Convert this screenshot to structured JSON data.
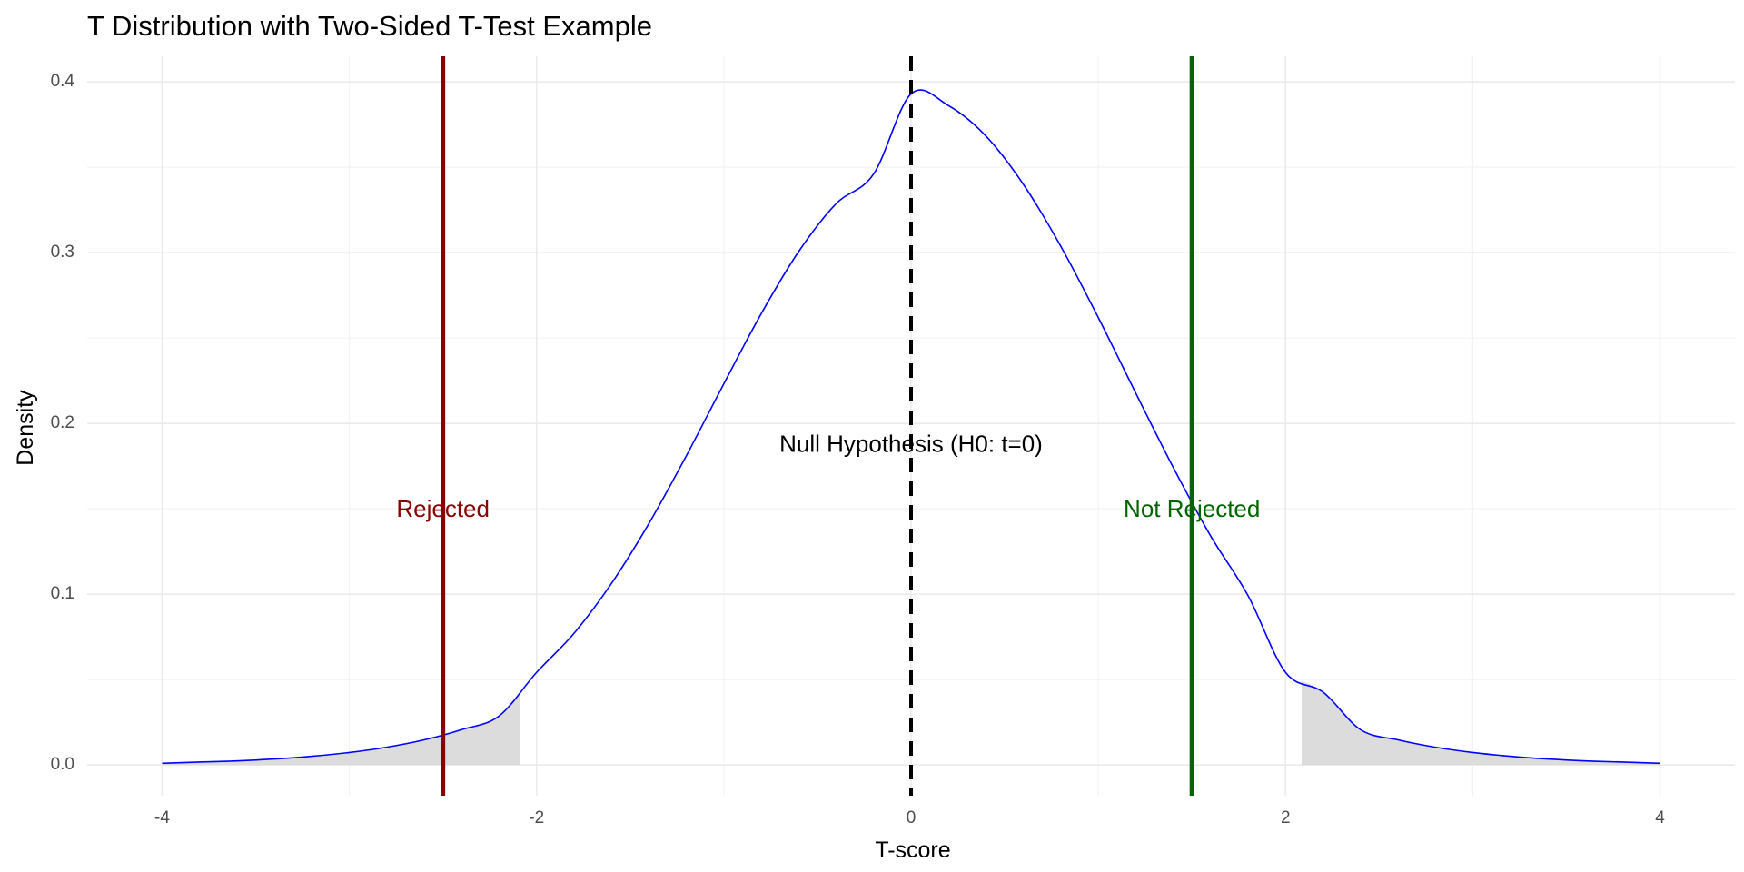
{
  "chart_data": {
    "type": "line",
    "title": "T Distribution with Two-Sided T-Test Example",
    "xlabel": "T-score",
    "ylabel": "Density",
    "xlim": [
      -4.4,
      4.4
    ],
    "ylim": [
      -0.018,
      0.415
    ],
    "x_ticks": [
      -4,
      -2,
      0,
      2,
      4
    ],
    "x_tick_labels": [
      "-4",
      "-2",
      "0",
      "2",
      "4"
    ],
    "y_ticks": [
      0.0,
      0.1,
      0.2,
      0.3,
      0.4
    ],
    "y_tick_labels": [
      "0.0",
      "0.1",
      "0.2",
      "0.3",
      "0.4"
    ],
    "grid": true,
    "series": [
      {
        "color": "#0000ff",
        "x": [
          -4.0,
          -3.8,
          -3.6,
          -3.4,
          -3.2,
          -3.0,
          -2.8,
          -2.6,
          -2.4,
          -2.2,
          -2.0,
          -1.8,
          -1.6,
          -1.4,
          -1.2,
          -1.0,
          -0.8,
          -0.6,
          -0.4,
          -0.2,
          0.0,
          0.2,
          0.4,
          0.6,
          0.8,
          1.0,
          1.2,
          1.4,
          1.6,
          1.8,
          2.0,
          2.2,
          2.4,
          2.6,
          2.8,
          3.0,
          3.2,
          3.4,
          3.6,
          3.8,
          4.0
        ],
        "y": [
          0.001,
          0.0017,
          0.0024,
          0.0035,
          0.0051,
          0.0073,
          0.0104,
          0.0147,
          0.0207,
          0.0287,
          0.0542,
          0.0771,
          0.1063,
          0.1414,
          0.1811,
          0.2232,
          0.2643,
          0.3007,
          0.3287,
          0.3461,
          0.393,
          0.3861,
          0.3683,
          0.34,
          0.3037,
          0.262,
          0.2178,
          0.1743,
          0.1341,
          0.0991,
          0.0542,
          0.0427,
          0.0207,
          0.0147,
          0.0104,
          0.0073,
          0.0051,
          0.0035,
          0.0024,
          0.0017,
          0.001
        ]
      }
    ],
    "shaded_regions": [
      {
        "from": -4.0,
        "to": -2.086,
        "color": "#dcdcdc"
      },
      {
        "from": 2.086,
        "to": 4.0,
        "color": "#dcdcdc"
      }
    ],
    "vlines": [
      {
        "x": 0.0,
        "color": "#000000",
        "style": "dashed"
      },
      {
        "x": -2.5,
        "color": "#8b0000",
        "style": "solid"
      },
      {
        "x": 1.5,
        "color": "#006400",
        "style": "solid"
      }
    ],
    "annotations": [
      {
        "text": "Null Hypothesis (H0: t=0)",
        "x": 0.0,
        "y": 0.187,
        "color": "#000000"
      },
      {
        "text": "Rejected",
        "x": -2.5,
        "y": 0.149,
        "color": "#8b0000"
      },
      {
        "text": "Not Rejected",
        "x": 1.5,
        "y": 0.149,
        "color": "#006400"
      }
    ]
  }
}
